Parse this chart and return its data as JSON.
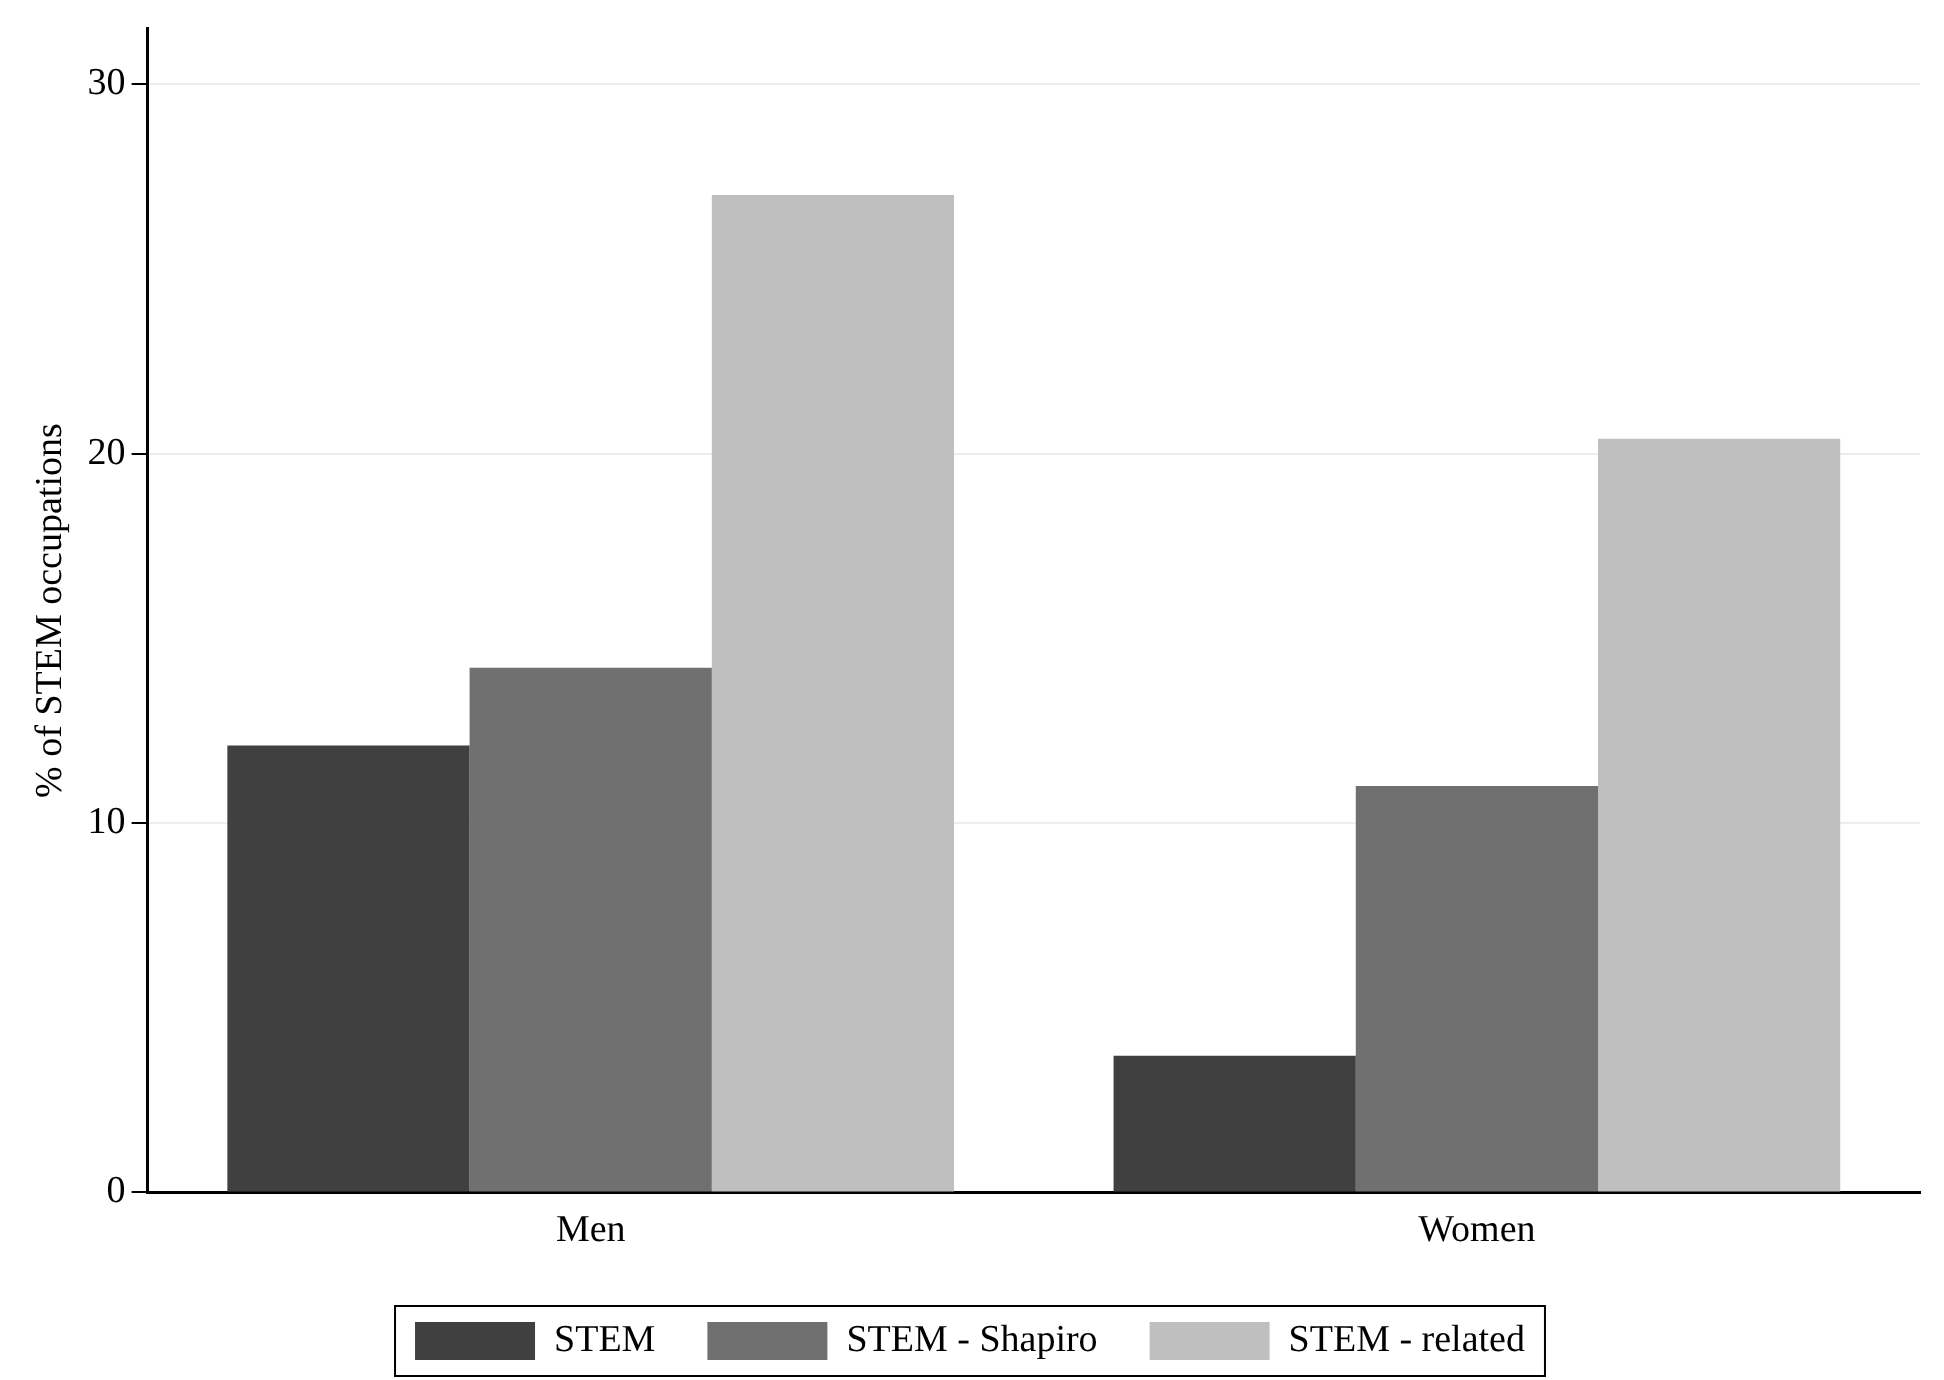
{
  "chart_data": {
    "type": "bar",
    "ylabel": "% of STEM occupations",
    "categories": [
      "Men",
      "Women"
    ],
    "series": [
      {
        "name": "STEM",
        "color": "#404040",
        "values": [
          12.1,
          3.7
        ]
      },
      {
        "name": "STEM - Shapiro",
        "color": "#707070",
        "values": [
          14.2,
          11.0
        ]
      },
      {
        "name": "STEM - related",
        "color": "#bfbfbf",
        "values": [
          27.0,
          20.4
        ]
      }
    ],
    "ylim": [
      0,
      31.5
    ],
    "yticks": [
      0,
      10,
      20,
      30
    ],
    "grid": "y",
    "legend": "bottom"
  }
}
